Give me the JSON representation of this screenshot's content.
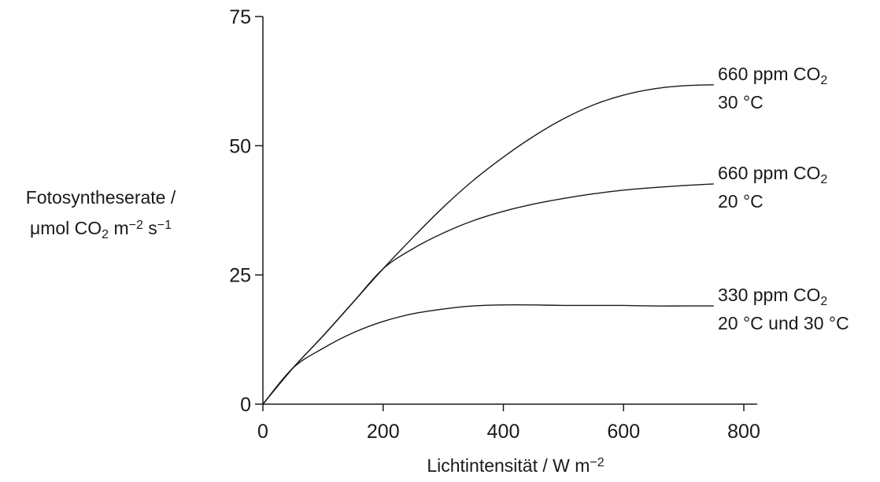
{
  "chart_data": {
    "type": "line",
    "xlabel": {
      "main": "Lichtintensität / W m",
      "sup": "−2"
    },
    "ylabel": {
      "line1": "Fotosyntheserate /",
      "line2": [
        {
          "t": "μmol CO"
        },
        {
          "t": "2",
          "s": "sub"
        },
        {
          "t": " m"
        },
        {
          "t": "−2",
          "s": "sup"
        },
        {
          "t": " s"
        },
        {
          "t": "−1",
          "s": "sup"
        }
      ]
    },
    "xlim": [
      0,
      800
    ],
    "ylim": [
      0,
      75
    ],
    "xticks": [
      0,
      200,
      400,
      600,
      800
    ],
    "yticks": [
      0,
      25,
      50,
      75
    ],
    "series": [
      {
        "label_line1": [
          {
            "t": "660 ppm CO"
          },
          {
            "t": "2",
            "s": "sub"
          }
        ],
        "label_line2": [
          {
            "t": "30 °C"
          }
        ],
        "x": [
          0,
          50,
          100,
          150,
          200,
          250,
          300,
          350,
          400,
          450,
          500,
          550,
          600,
          650,
          700,
          750
        ],
        "y": [
          0,
          7,
          13.2,
          19.7,
          26.2,
          32.3,
          38.1,
          43.3,
          47.8,
          51.8,
          55.2,
          57.9,
          59.8,
          61,
          61.6,
          61.8
        ]
      },
      {
        "label_line1": [
          {
            "t": "660 ppm CO"
          },
          {
            "t": "2",
            "s": "sub"
          }
        ],
        "label_line2": [
          {
            "t": "20 °C"
          }
        ],
        "x": [
          0,
          50,
          100,
          150,
          200,
          250,
          300,
          350,
          400,
          450,
          500,
          550,
          600,
          650,
          700,
          750
        ],
        "y": [
          0,
          7,
          13.2,
          19.7,
          26.2,
          30.1,
          33.1,
          35.5,
          37.3,
          38.7,
          39.8,
          40.7,
          41.4,
          41.9,
          42.3,
          42.6
        ]
      },
      {
        "label_line1": [
          {
            "t": "330 ppm CO"
          },
          {
            "t": "2",
            "s": "sub"
          }
        ],
        "label_line2": [
          {
            "t": "20 °C und 30 °C"
          }
        ],
        "x": [
          0,
          50,
          100,
          150,
          200,
          250,
          300,
          350,
          400,
          450,
          500,
          550,
          600,
          650,
          700,
          750
        ],
        "y": [
          0,
          7,
          10.8,
          13.8,
          16,
          17.5,
          18.4,
          19,
          19.2,
          19.2,
          19.1,
          19.1,
          19.1,
          19,
          19,
          19
        ]
      }
    ]
  }
}
